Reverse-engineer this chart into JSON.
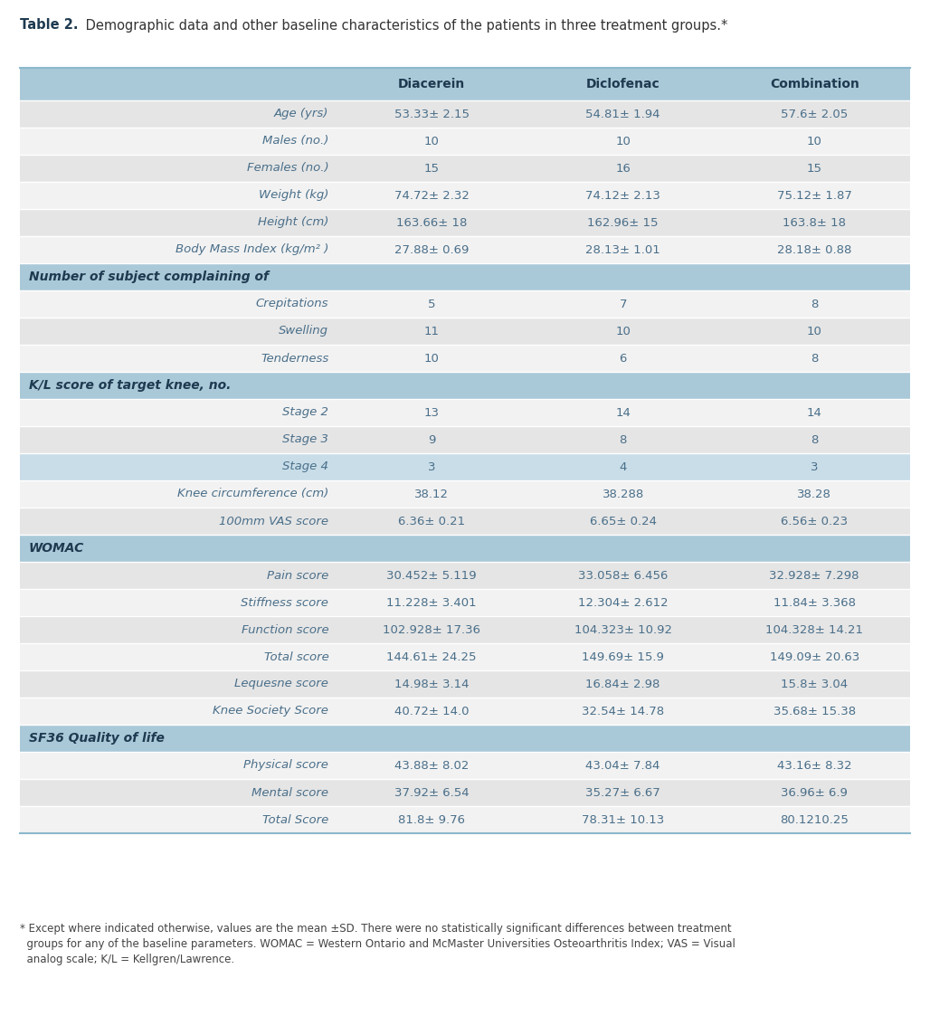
{
  "title_bold": "Table 2.",
  "title_rest": " Demographic data and other baseline characteristics of the patients in three treatment groups.*",
  "col_headers": [
    "",
    "Diacerein",
    "Diclofenac",
    "Combination"
  ],
  "rows": [
    {
      "label": "Age (yrs)",
      "vals": [
        "53.33± 2.15",
        "54.81± 1.94",
        "57.6± 2.05"
      ],
      "section": false,
      "style": "light_gray"
    },
    {
      "label": "Males (no.)",
      "vals": [
        "10",
        "10",
        "10"
      ],
      "section": false,
      "style": "white"
    },
    {
      "label": "Females (no.)",
      "vals": [
        "15",
        "16",
        "15"
      ],
      "section": false,
      "style": "light_gray"
    },
    {
      "label": "Weight (kg)",
      "vals": [
        "74.72± 2.32",
        "74.12± 2.13",
        "75.12± 1.87"
      ],
      "section": false,
      "style": "white"
    },
    {
      "label": "Height (cm)",
      "vals": [
        "163.66± 18",
        "162.96± 15",
        "163.8± 18"
      ],
      "section": false,
      "style": "light_gray"
    },
    {
      "label": "Body Mass Index (kg/m² )",
      "vals": [
        "27.88± 0.69",
        "28.13± 1.01",
        "28.18± 0.88"
      ],
      "section": false,
      "style": "white"
    },
    {
      "label": "Number of subject complaining of",
      "vals": [
        "",
        "",
        ""
      ],
      "section": true,
      "style": "section_blue"
    },
    {
      "label": "Crepitations",
      "vals": [
        "5",
        "7",
        "8"
      ],
      "section": false,
      "style": "white"
    },
    {
      "label": "Swelling",
      "vals": [
        "11",
        "10",
        "10"
      ],
      "section": false,
      "style": "light_gray"
    },
    {
      "label": "Tenderness",
      "vals": [
        "10",
        "6",
        "8"
      ],
      "section": false,
      "style": "white"
    },
    {
      "label": "K/L score of target knee, no.",
      "vals": [
        "",
        "",
        ""
      ],
      "section": true,
      "style": "section_blue"
    },
    {
      "label": "Stage 2",
      "vals": [
        "13",
        "14",
        "14"
      ],
      "section": false,
      "style": "white"
    },
    {
      "label": "Stage 3",
      "vals": [
        "9",
        "8",
        "8"
      ],
      "section": false,
      "style": "light_gray"
    },
    {
      "label": "Stage 4",
      "vals": [
        "3",
        "4",
        "3"
      ],
      "section": false,
      "style": "blue_light"
    },
    {
      "label": "Knee circumference (cm)",
      "vals": [
        "38.12",
        "38.288",
        "38.28"
      ],
      "section": false,
      "style": "white"
    },
    {
      "label": "100mm VAS score",
      "vals": [
        "6.36± 0.21",
        "6.65± 0.24",
        "6.56± 0.23"
      ],
      "section": false,
      "style": "light_gray"
    },
    {
      "label": "WOMAC",
      "vals": [
        "",
        "",
        ""
      ],
      "section": true,
      "style": "section_blue"
    },
    {
      "label": "Pain score",
      "vals": [
        "30.452± 5.119",
        "33.058± 6.456",
        "32.928± 7.298"
      ],
      "section": false,
      "style": "light_gray"
    },
    {
      "label": "Stiffness score",
      "vals": [
        "11.228± 3.401",
        "12.304± 2.612",
        "11.84± 3.368"
      ],
      "section": false,
      "style": "white"
    },
    {
      "label": "Function score",
      "vals": [
        "102.928± 17.36",
        "104.323± 10.92",
        "104.328± 14.21"
      ],
      "section": false,
      "style": "light_gray"
    },
    {
      "label": "Total score",
      "vals": [
        "144.61± 24.25",
        "149.69± 15.9",
        "149.09± 20.63"
      ],
      "section": false,
      "style": "white"
    },
    {
      "label": "Lequesne score",
      "vals": [
        "14.98± 3.14",
        "16.84± 2.98",
        "15.8± 3.04"
      ],
      "section": false,
      "style": "light_gray"
    },
    {
      "label": "Knee Society Score",
      "vals": [
        "40.72± 14.0",
        "32.54± 14.78",
        "35.68± 15.38"
      ],
      "section": false,
      "style": "white"
    },
    {
      "label": "SF36 Quality of life",
      "vals": [
        "",
        "",
        ""
      ],
      "section": true,
      "style": "section_blue"
    },
    {
      "label": "Physical score",
      "vals": [
        "43.88± 8.02",
        "43.04± 7.84",
        "43.16± 8.32"
      ],
      "section": false,
      "style": "white"
    },
    {
      "label": "Mental score",
      "vals": [
        "37.92± 6.54",
        "35.27± 6.67",
        "36.96± 6.9"
      ],
      "section": false,
      "style": "light_gray"
    },
    {
      "label": "Total Score",
      "vals": [
        "81.8± 9.76",
        "78.31± 10.13",
        "80.1210.25"
      ],
      "section": false,
      "style": "white"
    }
  ],
  "footer_line1": "* Except where indicated otherwise, values are the mean ±SD. There were no statistically significant differences between treatment",
  "footer_line2": "  groups for any of the baseline parameters. WOMAC = Western Ontario and McMaster Universities Osteoarthritis Index; VAS = Visual",
  "footer_line3": "  analog scale; K/L = Kellgren/Lawrence.",
  "header_bg": "#aac9d8",
  "section_blue_bg": "#aac9d8",
  "light_gray_bg": "#e5e5e5",
  "white_bg": "#f2f2f2",
  "blue_light_bg": "#c8dde8",
  "text_blue": "#4a6f8a",
  "header_text": "#1e3a50",
  "section_text": "#1e3a50",
  "data_text": "#4a6f8a",
  "footer_text": "#444444",
  "title_bold_color": "#1e3a50",
  "title_rest_color": "#333333"
}
